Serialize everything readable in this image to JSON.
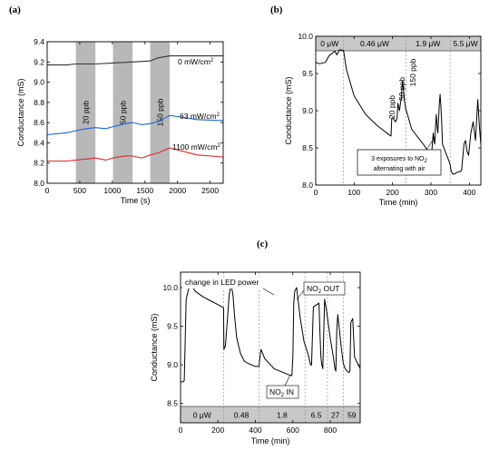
{
  "panels": [
    {
      "label": "(a)"
    },
    {
      "label": "(b)"
    },
    {
      "label": "(c)"
    }
  ],
  "chart_data": [
    {
      "panel": "(a)",
      "type": "line",
      "xlabel": "Time (s)",
      "ylabel": "Conductance (mS)",
      "xlim": [
        0,
        2700
      ],
      "ylim": [
        8.0,
        9.4
      ],
      "xticks": [
        0,
        500,
        1000,
        1500,
        2000,
        2500
      ],
      "yticks": [
        8.0,
        8.2,
        8.4,
        8.6,
        8.8,
        9.0,
        9.2,
        9.4
      ],
      "shaded_regions": [
        {
          "x": [
            440,
            740
          ],
          "label": "20 ppb",
          "color": "#b8b8b8"
        },
        {
          "x": [
            1010,
            1310
          ],
          "label": "50 ppb",
          "color": "#b8b8b8"
        },
        {
          "x": [
            1580,
            1880
          ],
          "label": "150 ppb",
          "color": "#b8b8b8"
        }
      ],
      "series": [
        {
          "name": "0 mW/cm²",
          "color": "#333333",
          "x": [
            0,
            300,
            440,
            740,
            1010,
            1310,
            1580,
            1700,
            1880,
            2200,
            2700
          ],
          "y": [
            9.17,
            9.17,
            9.18,
            9.18,
            9.19,
            9.2,
            9.21,
            9.24,
            9.26,
            9.26,
            9.26
          ]
        },
        {
          "name": "63 mW/cm²",
          "color": "#1f66d6",
          "x": [
            0,
            300,
            440,
            600,
            740,
            900,
            1010,
            1200,
            1310,
            1450,
            1580,
            1700,
            1880,
            2000,
            2300,
            2700
          ],
          "y": [
            8.48,
            8.5,
            8.52,
            8.54,
            8.55,
            8.54,
            8.56,
            8.59,
            8.6,
            8.58,
            8.59,
            8.61,
            8.67,
            8.66,
            8.63,
            8.62
          ]
        },
        {
          "name": "1100 mW/cm²",
          "color": "#e0282e",
          "x": [
            0,
            300,
            440,
            600,
            740,
            900,
            1010,
            1200,
            1310,
            1450,
            1580,
            1700,
            1880,
            2000,
            2300,
            2700
          ],
          "y": [
            8.22,
            8.22,
            8.23,
            8.24,
            8.25,
            8.23,
            8.25,
            8.27,
            8.27,
            8.25,
            8.28,
            8.3,
            8.35,
            8.33,
            8.28,
            8.26
          ]
        }
      ],
      "series_labels": [
        "0 mW/cm",
        "63 mW/cm",
        "1100 mW/cm"
      ],
      "superscript": "2"
    },
    {
      "panel": "(b)",
      "type": "line",
      "xlabel": "Time (min)",
      "ylabel": "Conductance (mS)",
      "xlim": [
        0,
        430
      ],
      "ylim": [
        8.0,
        10.0
      ],
      "xticks": [
        0,
        100,
        200,
        300,
        400
      ],
      "yticks": [
        8.0,
        8.5,
        9.0,
        9.5,
        10.0
      ],
      "power_segments": [
        {
          "label": "0 μW",
          "x": [
            0,
            72
          ]
        },
        {
          "label": "0.46 μW",
          "x": [
            72,
            235
          ]
        },
        {
          "label": "1.9 μW",
          "x": [
            235,
            350
          ]
        },
        {
          "label": "5.5 μW",
          "x": [
            350,
            430
          ]
        }
      ],
      "peak_labels": [
        "20 ppb",
        "50 ppb",
        "150 ppb"
      ],
      "annotation": [
        "3 exposures to NO",
        "2",
        "alternating with air"
      ],
      "series": [
        {
          "name": "",
          "color": "#000000",
          "x": [
            0,
            10,
            25,
            35,
            50,
            55,
            62,
            72,
            73,
            80,
            100,
            130,
            160,
            190,
            196,
            198,
            200,
            204,
            208,
            212,
            214,
            218,
            222,
            226,
            232,
            235,
            236,
            250,
            280,
            300,
            302,
            304,
            306,
            308,
            310,
            312,
            314,
            316,
            318,
            320,
            322,
            324,
            326,
            328,
            330,
            345,
            350,
            352,
            356,
            362,
            364,
            368,
            372,
            376,
            380,
            386,
            390,
            394,
            398,
            404,
            410,
            416,
            422,
            426,
            430
          ],
          "y": [
            9.65,
            9.63,
            9.65,
            9.74,
            9.8,
            9.75,
            9.82,
            9.81,
            9.79,
            9.55,
            9.2,
            8.95,
            8.8,
            8.68,
            8.66,
            8.9,
            8.9,
            8.88,
            8.85,
            8.9,
            9.1,
            9.0,
            9.15,
            9.4,
            9.1,
            9.0,
            9.0,
            8.75,
            8.55,
            8.4,
            8.42,
            8.58,
            8.7,
            8.6,
            8.55,
            8.8,
            8.95,
            8.8,
            8.7,
            8.9,
            9.1,
            9.22,
            9.05,
            8.85,
            8.55,
            8.35,
            8.28,
            8.2,
            8.15,
            8.15,
            8.16,
            8.17,
            8.18,
            8.18,
            8.2,
            8.55,
            8.6,
            8.45,
            8.4,
            8.7,
            8.85,
            8.6,
            9.15,
            8.8,
            8.55
          ]
        }
      ]
    },
    {
      "panel": "(c)",
      "type": "line",
      "xlabel": "Time (min)",
      "ylabel": "Conductance (mS)",
      "xlim": [
        0,
        960
      ],
      "ylim": [
        8.25,
        10.2
      ],
      "xticks": [
        0,
        200,
        400,
        600,
        800
      ],
      "yticks": [
        8.5,
        9.0,
        9.5,
        10.0
      ],
      "power_segments": [
        {
          "label": "0 μW",
          "x": [
            0,
            230
          ]
        },
        {
          "label": "0.48",
          "x": [
            230,
            420
          ]
        },
        {
          "label": "1.8",
          "x": [
            420,
            665
          ]
        },
        {
          "label": "6.5",
          "x": [
            665,
            785
          ]
        },
        {
          "label": "27",
          "x": [
            785,
            870
          ]
        },
        {
          "label": "59",
          "x": [
            870,
            960
          ]
        }
      ],
      "annotations": {
        "led": "change in LED power",
        "no2_out": [
          "NO",
          "2",
          " OUT"
        ],
        "no2_in": [
          "NO",
          "2",
          " IN"
        ]
      },
      "series": [
        {
          "name": "",
          "color": "#000000",
          "x": [
            0,
            15,
            20,
            30,
            50,
            60,
            80,
            120,
            160,
            200,
            230,
            232,
            240,
            260,
            270,
            280,
            290,
            300,
            320,
            340,
            360,
            380,
            400,
            420,
            422,
            430,
            450,
            500,
            550,
            580,
            595,
            600,
            605,
            610,
            620,
            640,
            660,
            680,
            690,
            695,
            700,
            710,
            740,
            745,
            750,
            755,
            760,
            770,
            780,
            800,
            820,
            825,
            830,
            835,
            840,
            860,
            870,
            875,
            880,
            890,
            900,
            905,
            910,
            920,
            930,
            960
          ],
          "y": [
            8.78,
            8.78,
            8.8,
            9.85,
            10.05,
            10.02,
            9.95,
            9.88,
            9.83,
            9.78,
            9.74,
            9.2,
            9.25,
            9.9,
            10.05,
            9.9,
            9.6,
            9.35,
            9.15,
            9.05,
            9.02,
            9.0,
            8.98,
            8.98,
            9.05,
            9.2,
            9.08,
            8.95,
            8.9,
            8.87,
            8.86,
            9.1,
            9.8,
            9.95,
            10.0,
            9.6,
            9.3,
            9.15,
            9.05,
            9.0,
            9.0,
            9.75,
            9.8,
            9.4,
            9.1,
            9.0,
            8.95,
            9.85,
            9.7,
            9.35,
            9.05,
            8.95,
            8.92,
            9.45,
            9.65,
            9.2,
            9.02,
            8.98,
            8.95,
            8.92,
            8.9,
            8.92,
            9.55,
            9.6,
            9.1,
            8.95
          ]
        }
      ]
    }
  ]
}
